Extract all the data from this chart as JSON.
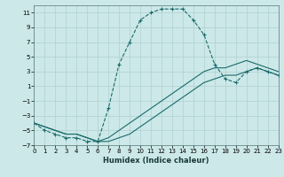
{
  "xlabel": "Humidex (Indice chaleur)",
  "bg_color": "#cce8e8",
  "grid_color": "#b0d0d0",
  "line_color": "#1a6b6b",
  "xlim": [
    0,
    23
  ],
  "ylim": [
    -7,
    12
  ],
  "xticks": [
    0,
    1,
    2,
    3,
    4,
    5,
    6,
    7,
    8,
    9,
    10,
    11,
    12,
    13,
    14,
    15,
    16,
    17,
    18,
    19,
    20,
    21,
    22,
    23
  ],
  "yticks": [
    -7,
    -5,
    -3,
    -1,
    1,
    3,
    5,
    7,
    9,
    11
  ],
  "line1_x": [
    0,
    1,
    2,
    3,
    4,
    5,
    6,
    7,
    8,
    9,
    10,
    11,
    12,
    13,
    14,
    15,
    16,
    17,
    18,
    19,
    20,
    21,
    22,
    23
  ],
  "line1_y": [
    -4,
    -5,
    -5.5,
    -6,
    -6,
    -6.5,
    -6.5,
    -2,
    4,
    7,
    10,
    11,
    11.5,
    11.5,
    11.5,
    10,
    8,
    4,
    2,
    1.5,
    3,
    3.5,
    3,
    2.5
  ],
  "line2_x": [
    0,
    1,
    2,
    3,
    4,
    5,
    6,
    7,
    8,
    9,
    10,
    11,
    12,
    13,
    14,
    15,
    16,
    17,
    18,
    19,
    20,
    21,
    22,
    23
  ],
  "line2_y": [
    -4,
    -4.5,
    -5,
    -5.5,
    -5.5,
    -6,
    -6.5,
    -6.5,
    -6,
    -5.5,
    -4.5,
    -3.5,
    -2.5,
    -1.5,
    -0.5,
    0.5,
    1.5,
    2,
    2.5,
    2.5,
    3,
    3.5,
    3,
    2.5
  ],
  "line3_x": [
    0,
    1,
    2,
    3,
    4,
    5,
    6,
    7,
    8,
    9,
    10,
    11,
    12,
    13,
    14,
    15,
    16,
    17,
    18,
    19,
    20,
    21,
    22,
    23
  ],
  "line3_y": [
    -4,
    -4.5,
    -5,
    -5.5,
    -5.5,
    -6,
    -6.5,
    -6,
    -5,
    -4,
    -3,
    -2,
    -1,
    0,
    1,
    2,
    3,
    3.5,
    3.5,
    4,
    4.5,
    4,
    3.5,
    3
  ]
}
